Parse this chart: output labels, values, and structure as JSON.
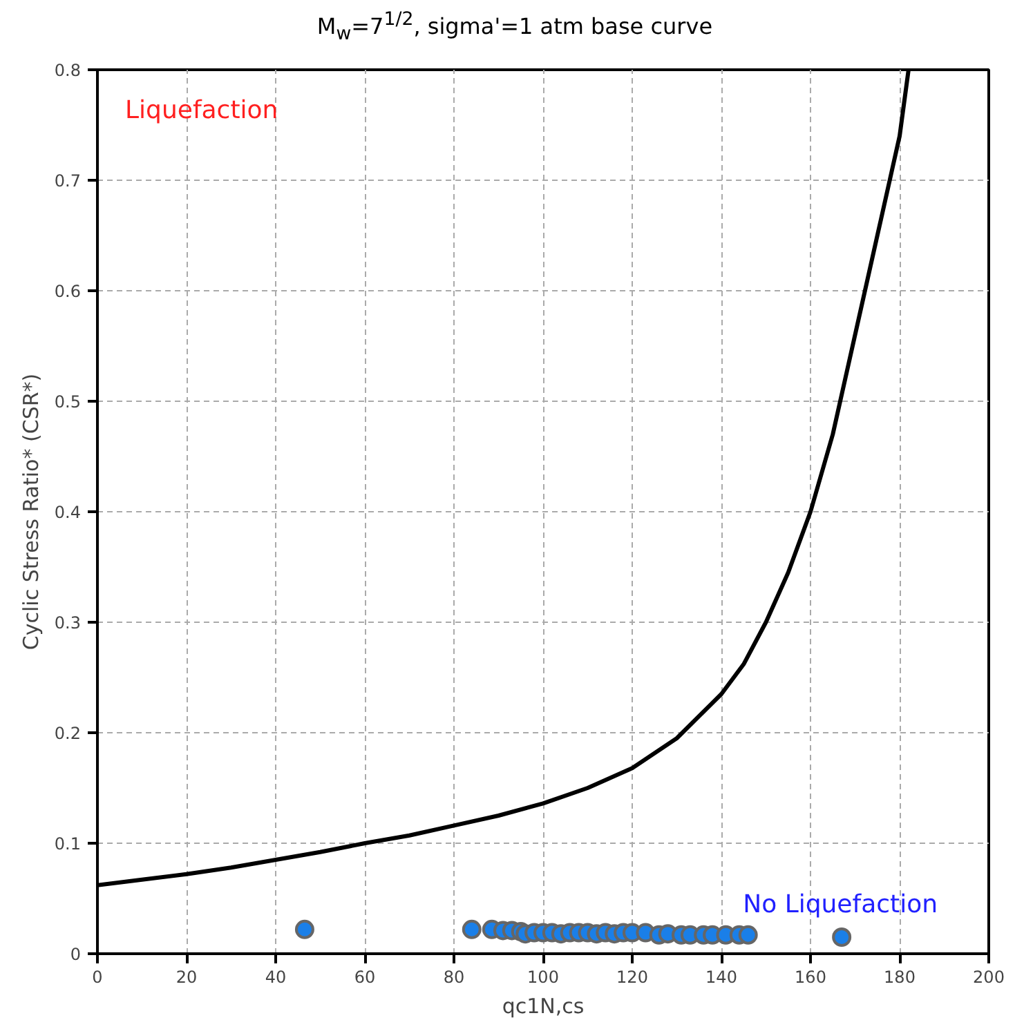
{
  "chart_data": {
    "type": "line",
    "title": "M$_{w}$=7$^{1/2}$, sigma'=1 atm base curve",
    "xlabel": "qc1N,cs",
    "ylabel": "Cyclic Stress Ratio* (CSR*)",
    "xlim": [
      0,
      200
    ],
    "ylim": [
      0,
      0.8
    ],
    "xticks": [
      0,
      20,
      40,
      60,
      80,
      100,
      120,
      140,
      160,
      180,
      200
    ],
    "yticks": [
      0,
      0.1,
      0.2,
      0.3,
      0.4,
      0.5,
      0.6,
      0.7,
      0.8
    ],
    "grid": true,
    "series": [
      {
        "color": "#000000",
        "marker": "none",
        "line_style": "solid",
        "x": [
          0,
          10,
          20,
          30,
          40,
          50,
          60,
          70,
          80,
          90,
          100,
          110,
          120,
          130,
          140,
          145,
          150,
          155,
          160,
          165,
          170,
          175,
          180,
          182
        ],
        "values": [
          0.062,
          0.067,
          0.072,
          0.078,
          0.085,
          0.092,
          0.1,
          0.107,
          0.116,
          0.125,
          0.136,
          0.15,
          0.168,
          0.195,
          0.235,
          0.262,
          0.3,
          0.345,
          0.4,
          0.47,
          0.56,
          0.65,
          0.74,
          0.8
        ]
      },
      {
        "type": "scatter",
        "color": "#1a7fe8",
        "marker": "circle",
        "x": [
          46.5,
          84,
          88.5,
          91,
          93,
          95,
          96,
          98,
          100,
          102,
          104,
          106,
          108,
          110,
          112,
          114,
          116,
          118,
          120,
          123,
          126,
          128,
          131,
          133,
          136,
          138,
          141,
          144,
          146,
          167
        ],
        "values": [
          0.022,
          0.022,
          0.022,
          0.021,
          0.021,
          0.02,
          0.018,
          0.019,
          0.019,
          0.019,
          0.018,
          0.019,
          0.019,
          0.019,
          0.018,
          0.019,
          0.018,
          0.019,
          0.019,
          0.019,
          0.017,
          0.018,
          0.017,
          0.017,
          0.017,
          0.017,
          0.017,
          0.017,
          0.017,
          0.015
        ]
      }
    ],
    "annotations": [
      "Liquefaction",
      "No Liquefaction"
    ]
  }
}
